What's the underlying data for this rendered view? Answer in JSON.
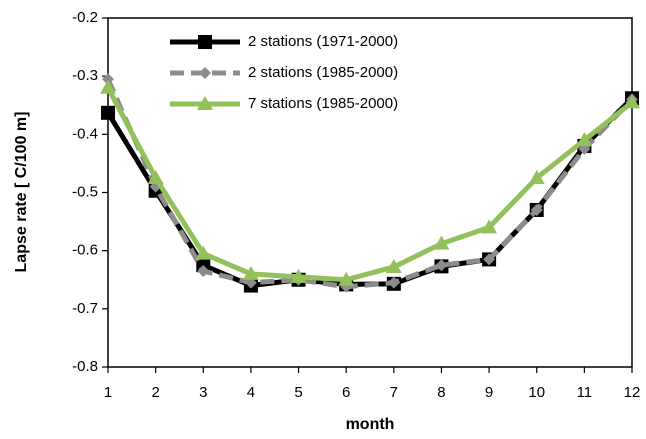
{
  "chart_data": {
    "type": "line",
    "xlabel": "month",
    "ylabel": "Lapse rate [  C/100 m]",
    "x": [
      1,
      2,
      3,
      4,
      5,
      6,
      7,
      8,
      9,
      10,
      11,
      12
    ],
    "xlim": [
      1,
      12
    ],
    "xticks": [
      1,
      2,
      3,
      4,
      5,
      6,
      7,
      8,
      9,
      10,
      11,
      12
    ],
    "ylim": [
      -0.8,
      -0.2
    ],
    "yticks": [
      -0.8,
      -0.7,
      -0.6,
      -0.5,
      -0.4,
      -0.3,
      -0.2
    ],
    "grid": false,
    "legend": "upper left",
    "series": [
      {
        "name": "2 stations (1971-2000)",
        "color": "#000000",
        "marker": "square",
        "dash": false,
        "values": [
          -0.363,
          -0.497,
          -0.625,
          -0.66,
          -0.65,
          -0.658,
          -0.657,
          -0.627,
          -0.615,
          -0.53,
          -0.42,
          -0.338
        ]
      },
      {
        "name": "2 stations (1985-2000)",
        "color": "#8c8c8c",
        "marker": "diamond",
        "dash": true,
        "values": [
          -0.305,
          -0.49,
          -0.635,
          -0.655,
          -0.65,
          -0.662,
          -0.655,
          -0.625,
          -0.615,
          -0.53,
          -0.425,
          -0.34
        ]
      },
      {
        "name": "7 stations (1985-2000)",
        "color": "#92c05a",
        "marker": "triangle",
        "dash": false,
        "values": [
          -0.32,
          -0.475,
          -0.605,
          -0.64,
          -0.645,
          -0.65,
          -0.628,
          -0.588,
          -0.56,
          -0.475,
          -0.41,
          -0.345
        ]
      }
    ]
  }
}
